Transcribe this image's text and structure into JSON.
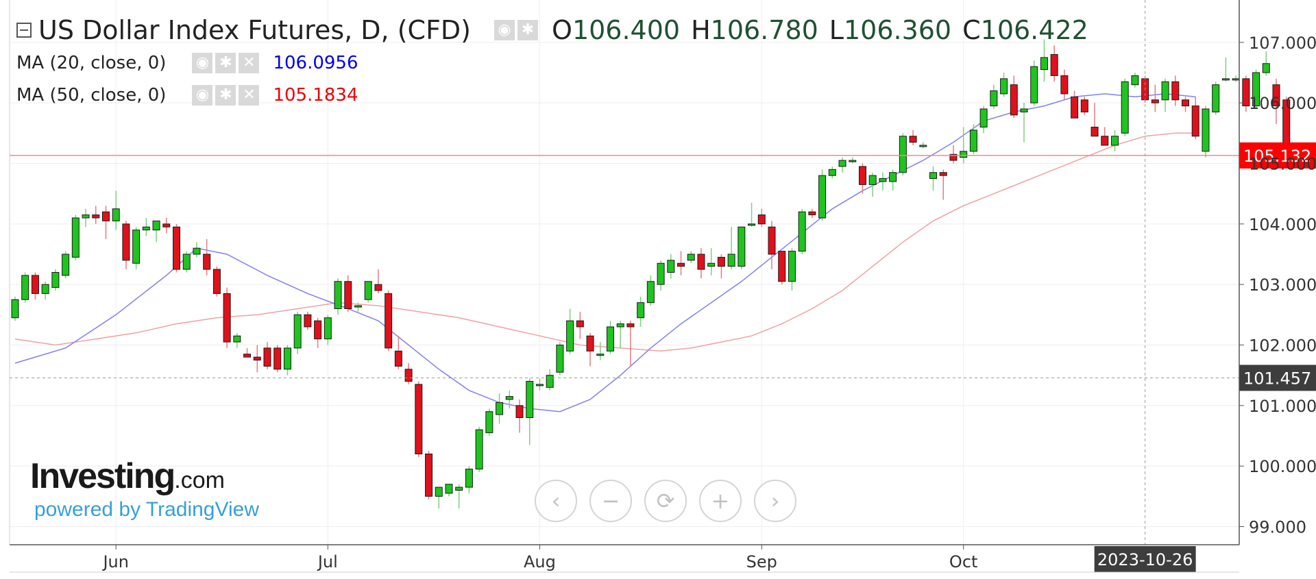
{
  "header": {
    "title": "US Dollar Index Futures, D, (CFD)",
    "ohlc": {
      "o_label": "O",
      "o": "106.400",
      "h_label": "H",
      "h": "106.780",
      "l_label": "L",
      "l": "106.360",
      "c_label": "C",
      "c": "106.422"
    }
  },
  "indicators": [
    {
      "label": "MA (20, close, 0)",
      "value": "106.0956",
      "color": "#0000ee"
    },
    {
      "label": "MA (50, close, 0)",
      "value": "105.1834",
      "color": "#ee0000"
    }
  ],
  "branding": {
    "logo_main": "Investing",
    "logo_suffix": ".com",
    "powered_by": "powered by TradingView"
  },
  "navigation": {
    "scroll_left": "‹",
    "zoom_out": "−",
    "reset": "⟳",
    "zoom_in": "+",
    "scroll_right": "›"
  },
  "colors": {
    "up": "#1fc41f",
    "down": "#e0111a",
    "ma20": "#8080ee",
    "ma50": "#f0a0a0",
    "price_line": "#f08a8a",
    "price_badge": "#ff0000",
    "crosshair_badge": "#3d3d3d"
  },
  "chart_data": {
    "type": "candlestick",
    "title": "US Dollar Index Futures, D, (CFD)",
    "ylim": [
      98.7,
      107.7
    ],
    "yticks": [
      "99.000",
      "100.000",
      "101.000",
      "102.000",
      "103.000",
      "104.000",
      "105.000",
      "106.000",
      "107.000"
    ],
    "xticks": [
      {
        "label": "Jun",
        "index": 10
      },
      {
        "label": "Jul",
        "index": 31
      },
      {
        "label": "Aug",
        "index": 52
      },
      {
        "label": "Sep",
        "index": 74
      },
      {
        "label": "Oct",
        "index": 94
      }
    ],
    "current_price_label": "105.132",
    "current_price": 105.132,
    "crosshair_price_label": "101.457",
    "crosshair_price": 101.457,
    "crosshair_date_label": "2023-10-26",
    "crosshair_index": 112,
    "candles": [
      {
        "o": 102.45,
        "h": 102.8,
        "l": 102.4,
        "c": 102.75
      },
      {
        "o": 102.75,
        "h": 103.2,
        "l": 102.7,
        "c": 103.15
      },
      {
        "o": 103.15,
        "h": 103.2,
        "l": 102.75,
        "c": 102.85
      },
      {
        "o": 102.85,
        "h": 103.05,
        "l": 102.75,
        "c": 103.0
      },
      {
        "o": 102.95,
        "h": 103.25,
        "l": 102.9,
        "c": 103.2
      },
      {
        "o": 103.15,
        "h": 103.55,
        "l": 103.1,
        "c": 103.5
      },
      {
        "o": 103.45,
        "h": 104.15,
        "l": 103.4,
        "c": 104.1
      },
      {
        "o": 104.1,
        "h": 104.25,
        "l": 103.95,
        "c": 104.15
      },
      {
        "o": 104.15,
        "h": 104.3,
        "l": 104.0,
        "c": 104.1
      },
      {
        "o": 104.2,
        "h": 104.3,
        "l": 103.75,
        "c": 104.05
      },
      {
        "o": 104.05,
        "h": 104.55,
        "l": 103.9,
        "c": 104.25
      },
      {
        "o": 104.0,
        "h": 104.05,
        "l": 103.25,
        "c": 103.4
      },
      {
        "o": 103.35,
        "h": 103.95,
        "l": 103.25,
        "c": 103.9
      },
      {
        "o": 103.9,
        "h": 104.1,
        "l": 103.8,
        "c": 103.95
      },
      {
        "o": 103.9,
        "h": 104.05,
        "l": 103.7,
        "c": 104.05
      },
      {
        "o": 104.0,
        "h": 104.1,
        "l": 103.85,
        "c": 103.95
      },
      {
        "o": 103.95,
        "h": 104.0,
        "l": 103.2,
        "c": 103.25
      },
      {
        "o": 103.25,
        "h": 103.55,
        "l": 103.2,
        "c": 103.5
      },
      {
        "o": 103.5,
        "h": 103.7,
        "l": 103.45,
        "c": 103.6
      },
      {
        "o": 103.5,
        "h": 103.75,
        "l": 103.15,
        "c": 103.25
      },
      {
        "o": 103.25,
        "h": 103.3,
        "l": 102.8,
        "c": 102.85
      },
      {
        "o": 102.85,
        "h": 102.95,
        "l": 101.95,
        "c": 102.05
      },
      {
        "o": 102.05,
        "h": 102.2,
        "l": 101.95,
        "c": 102.15
      },
      {
        "o": 101.85,
        "h": 101.95,
        "l": 101.8,
        "c": 101.8
      },
      {
        "o": 101.8,
        "h": 102.0,
        "l": 101.55,
        "c": 101.75
      },
      {
        "o": 101.95,
        "h": 102.05,
        "l": 101.6,
        "c": 101.65
      },
      {
        "o": 101.95,
        "h": 102.0,
        "l": 101.55,
        "c": 101.6
      },
      {
        "o": 101.6,
        "h": 102.0,
        "l": 101.5,
        "c": 101.95
      },
      {
        "o": 101.95,
        "h": 102.55,
        "l": 101.85,
        "c": 102.5
      },
      {
        "o": 102.5,
        "h": 102.55,
        "l": 102.25,
        "c": 102.3
      },
      {
        "o": 102.4,
        "h": 102.45,
        "l": 101.95,
        "c": 102.1
      },
      {
        "o": 102.1,
        "h": 102.5,
        "l": 102.0,
        "c": 102.45
      },
      {
        "o": 102.6,
        "h": 103.1,
        "l": 102.5,
        "c": 103.05
      },
      {
        "o": 103.05,
        "h": 103.15,
        "l": 102.55,
        "c": 102.6
      },
      {
        "o": 102.65,
        "h": 102.7,
        "l": 102.55,
        "c": 102.65
      },
      {
        "o": 102.75,
        "h": 103.05,
        "l": 102.7,
        "c": 103.05
      },
      {
        "o": 103.0,
        "h": 103.25,
        "l": 102.85,
        "c": 102.9
      },
      {
        "o": 102.85,
        "h": 102.9,
        "l": 101.9,
        "c": 101.95
      },
      {
        "o": 101.9,
        "h": 102.15,
        "l": 101.6,
        "c": 101.65
      },
      {
        "o": 101.6,
        "h": 101.7,
        "l": 101.35,
        "c": 101.4
      },
      {
        "o": 101.35,
        "h": 101.4,
        "l": 100.15,
        "c": 100.2
      },
      {
        "o": 100.2,
        "h": 100.25,
        "l": 99.45,
        "c": 99.5
      },
      {
        "o": 99.5,
        "h": 99.65,
        "l": 99.3,
        "c": 99.65
      },
      {
        "o": 99.55,
        "h": 99.7,
        "l": 99.5,
        "c": 99.7
      },
      {
        "o": 99.6,
        "h": 99.7,
        "l": 99.3,
        "c": 99.65
      },
      {
        "o": 99.65,
        "h": 100.0,
        "l": 99.55,
        "c": 99.95
      },
      {
        "o": 99.95,
        "h": 100.65,
        "l": 99.9,
        "c": 100.6
      },
      {
        "o": 100.55,
        "h": 100.95,
        "l": 100.5,
        "c": 100.9
      },
      {
        "o": 100.85,
        "h": 101.2,
        "l": 100.7,
        "c": 101.05
      },
      {
        "o": 101.1,
        "h": 101.25,
        "l": 100.95,
        "c": 101.15
      },
      {
        "o": 101.0,
        "h": 101.1,
        "l": 100.55,
        "c": 100.8
      },
      {
        "o": 100.8,
        "h": 101.45,
        "l": 100.35,
        "c": 101.4
      },
      {
        "o": 101.35,
        "h": 101.45,
        "l": 101.25,
        "c": 101.35
      },
      {
        "o": 101.3,
        "h": 101.6,
        "l": 101.25,
        "c": 101.5
      },
      {
        "o": 101.55,
        "h": 102.05,
        "l": 101.5,
        "c": 102.0
      },
      {
        "o": 101.9,
        "h": 102.6,
        "l": 101.85,
        "c": 102.4
      },
      {
        "o": 102.4,
        "h": 102.55,
        "l": 102.1,
        "c": 102.3
      },
      {
        "o": 102.15,
        "h": 102.2,
        "l": 101.65,
        "c": 101.9
      },
      {
        "o": 101.85,
        "h": 102.05,
        "l": 101.75,
        "c": 101.85
      },
      {
        "o": 101.9,
        "h": 102.4,
        "l": 101.85,
        "c": 102.3
      },
      {
        "o": 102.3,
        "h": 102.4,
        "l": 101.95,
        "c": 102.35
      },
      {
        "o": 102.35,
        "h": 102.4,
        "l": 101.65,
        "c": 102.3
      },
      {
        "o": 102.45,
        "h": 102.8,
        "l": 102.3,
        "c": 102.7
      },
      {
        "o": 102.7,
        "h": 103.15,
        "l": 102.65,
        "c": 103.05
      },
      {
        "o": 103.0,
        "h": 103.4,
        "l": 102.9,
        "c": 103.35
      },
      {
        "o": 103.2,
        "h": 103.5,
        "l": 103.1,
        "c": 103.4
      },
      {
        "o": 103.35,
        "h": 103.55,
        "l": 103.15,
        "c": 103.3
      },
      {
        "o": 103.4,
        "h": 103.55,
        "l": 103.35,
        "c": 103.5
      },
      {
        "o": 103.5,
        "h": 103.6,
        "l": 103.1,
        "c": 103.25
      },
      {
        "o": 103.3,
        "h": 103.6,
        "l": 103.15,
        "c": 103.35
      },
      {
        "o": 103.45,
        "h": 103.5,
        "l": 103.1,
        "c": 103.3
      },
      {
        "o": 103.3,
        "h": 103.95,
        "l": 103.25,
        "c": 103.5
      },
      {
        "o": 103.3,
        "h": 103.95,
        "l": 103.25,
        "c": 103.95
      },
      {
        "o": 104.0,
        "h": 104.35,
        "l": 103.95,
        "c": 104.0
      },
      {
        "o": 104.15,
        "h": 104.25,
        "l": 103.95,
        "c": 104.0
      },
      {
        "o": 103.95,
        "h": 104.05,
        "l": 103.25,
        "c": 103.5
      },
      {
        "o": 103.55,
        "h": 103.55,
        "l": 103.0,
        "c": 103.05
      },
      {
        "o": 103.05,
        "h": 103.6,
        "l": 102.9,
        "c": 103.55
      },
      {
        "o": 103.55,
        "h": 104.25,
        "l": 103.5,
        "c": 104.2
      },
      {
        "o": 104.2,
        "h": 104.25,
        "l": 104.1,
        "c": 104.15
      },
      {
        "o": 104.1,
        "h": 104.9,
        "l": 104.05,
        "c": 104.8
      },
      {
        "o": 104.8,
        "h": 104.95,
        "l": 104.75,
        "c": 104.9
      },
      {
        "o": 104.95,
        "h": 105.1,
        "l": 104.85,
        "c": 105.05
      },
      {
        "o": 105.05,
        "h": 105.1,
        "l": 105.0,
        "c": 105.05
      },
      {
        "o": 104.95,
        "h": 105.0,
        "l": 104.5,
        "c": 104.65
      },
      {
        "o": 104.65,
        "h": 104.85,
        "l": 104.45,
        "c": 104.8
      },
      {
        "o": 104.7,
        "h": 104.85,
        "l": 104.55,
        "c": 104.75
      },
      {
        "o": 104.7,
        "h": 104.9,
        "l": 104.55,
        "c": 104.85
      },
      {
        "o": 104.85,
        "h": 105.5,
        "l": 104.8,
        "c": 105.45
      },
      {
        "o": 105.45,
        "h": 105.55,
        "l": 105.3,
        "c": 105.35
      },
      {
        "o": 105.3,
        "h": 105.35,
        "l": 105.25,
        "c": 105.3
      },
      {
        "o": 104.75,
        "h": 104.95,
        "l": 104.55,
        "c": 104.85
      },
      {
        "o": 104.85,
        "h": 104.9,
        "l": 104.4,
        "c": 104.8
      },
      {
        "o": 105.15,
        "h": 105.3,
        "l": 105.0,
        "c": 105.05
      },
      {
        "o": 105.1,
        "h": 105.6,
        "l": 105.0,
        "c": 105.2
      },
      {
        "o": 105.2,
        "h": 105.65,
        "l": 105.15,
        "c": 105.55
      },
      {
        "o": 105.6,
        "h": 105.95,
        "l": 105.5,
        "c": 105.9
      },
      {
        "o": 105.95,
        "h": 106.3,
        "l": 105.9,
        "c": 106.2
      },
      {
        "o": 106.15,
        "h": 106.5,
        "l": 106.1,
        "c": 106.4
      },
      {
        "o": 106.3,
        "h": 106.45,
        "l": 105.75,
        "c": 105.8
      },
      {
        "o": 105.85,
        "h": 106.0,
        "l": 105.35,
        "c": 105.9
      },
      {
        "o": 106.0,
        "h": 106.7,
        "l": 105.95,
        "c": 106.6
      },
      {
        "o": 106.55,
        "h": 107.05,
        "l": 106.35,
        "c": 106.75
      },
      {
        "o": 106.8,
        "h": 106.95,
        "l": 106.35,
        "c": 106.45
      },
      {
        "o": 106.45,
        "h": 106.55,
        "l": 106.05,
        "c": 106.15
      },
      {
        "o": 106.1,
        "h": 106.2,
        "l": 105.75,
        "c": 105.75
      },
      {
        "o": 106.05,
        "h": 106.1,
        "l": 105.8,
        "c": 105.85
      },
      {
        "o": 105.6,
        "h": 106.0,
        "l": 105.45,
        "c": 105.45
      },
      {
        "o": 105.45,
        "h": 105.6,
        "l": 105.3,
        "c": 105.3
      },
      {
        "o": 105.3,
        "h": 105.55,
        "l": 105.2,
        "c": 105.45
      },
      {
        "o": 105.5,
        "h": 106.4,
        "l": 105.45,
        "c": 106.35
      },
      {
        "o": 106.3,
        "h": 106.5,
        "l": 106.25,
        "c": 106.45
      },
      {
        "o": 106.4,
        "h": 106.45,
        "l": 106.0,
        "c": 106.05
      },
      {
        "o": 106.05,
        "h": 106.3,
        "l": 105.85,
        "c": 106.0
      },
      {
        "o": 106.05,
        "h": 106.4,
        "l": 105.85,
        "c": 106.35
      },
      {
        "o": 106.35,
        "h": 106.45,
        "l": 105.95,
        "c": 106.05
      },
      {
        "o": 106.05,
        "h": 106.1,
        "l": 105.85,
        "c": 105.95
      },
      {
        "o": 105.95,
        "h": 106.1,
        "l": 105.4,
        "c": 105.45
      },
      {
        "o": 105.2,
        "h": 105.95,
        "l": 105.1,
        "c": 105.9
      },
      {
        "o": 105.85,
        "h": 106.35,
        "l": 105.8,
        "c": 106.3
      },
      {
        "o": 106.4,
        "h": 106.75,
        "l": 106.35,
        "c": 106.4
      },
      {
        "o": 106.4,
        "h": 106.45,
        "l": 106.35,
        "c": 106.4
      },
      {
        "o": 106.4,
        "h": 106.45,
        "l": 105.85,
        "c": 105.95
      },
      {
        "o": 105.95,
        "h": 106.55,
        "l": 105.9,
        "c": 106.5
      },
      {
        "o": 106.5,
        "h": 106.85,
        "l": 106.45,
        "c": 106.65
      },
      {
        "o": 106.3,
        "h": 106.4,
        "l": 105.65,
        "c": 105.95
      },
      {
        "o": 106.05,
        "h": 106.1,
        "l": 105.05,
        "c": 105.13
      }
    ],
    "ma20": [
      [
        0,
        101.7
      ],
      [
        5,
        101.95
      ],
      [
        10,
        102.5
      ],
      [
        15,
        103.15
      ],
      [
        18,
        103.6
      ],
      [
        21,
        103.5
      ],
      [
        25,
        103.15
      ],
      [
        29,
        102.85
      ],
      [
        33,
        102.6
      ],
      [
        36,
        102.4
      ],
      [
        39,
        102.0
      ],
      [
        42,
        101.6
      ],
      [
        45,
        101.25
      ],
      [
        48,
        101.05
      ],
      [
        51,
        100.95
      ],
      [
        54,
        100.9
      ],
      [
        57,
        101.1
      ],
      [
        60,
        101.5
      ],
      [
        63,
        101.95
      ],
      [
        66,
        102.35
      ],
      [
        69,
        102.7
      ],
      [
        72,
        103.05
      ],
      [
        75,
        103.45
      ],
      [
        78,
        103.85
      ],
      [
        81,
        104.25
      ],
      [
        84,
        104.55
      ],
      [
        87,
        104.8
      ],
      [
        90,
        105.05
      ],
      [
        93,
        105.35
      ],
      [
        96,
        105.7
      ],
      [
        99,
        105.85
      ],
      [
        102,
        105.95
      ],
      [
        105,
        106.1
      ],
      [
        108,
        106.15
      ],
      [
        111,
        106.1
      ],
      [
        114,
        106.15
      ],
      [
        117,
        106.1
      ]
    ],
    "ma50": [
      [
        0,
        102.1
      ],
      [
        4,
        102.0
      ],
      [
        8,
        102.1
      ],
      [
        12,
        102.2
      ],
      [
        16,
        102.35
      ],
      [
        20,
        102.45
      ],
      [
        24,
        102.5
      ],
      [
        28,
        102.6
      ],
      [
        32,
        102.7
      ],
      [
        36,
        102.65
      ],
      [
        40,
        102.55
      ],
      [
        44,
        102.45
      ],
      [
        48,
        102.3
      ],
      [
        52,
        102.15
      ],
      [
        56,
        102.0
      ],
      [
        60,
        101.95
      ],
      [
        64,
        101.9
      ],
      [
        67,
        101.95
      ],
      [
        70,
        102.05
      ],
      [
        73,
        102.15
      ],
      [
        76,
        102.35
      ],
      [
        79,
        102.6
      ],
      [
        82,
        102.9
      ],
      [
        85,
        103.3
      ],
      [
        88,
        103.7
      ],
      [
        91,
        104.05
      ],
      [
        94,
        104.3
      ],
      [
        97,
        104.5
      ],
      [
        100,
        104.7
      ],
      [
        103,
        104.9
      ],
      [
        106,
        105.1
      ],
      [
        109,
        105.3
      ],
      [
        112,
        105.45
      ],
      [
        115,
        105.5
      ],
      [
        117,
        105.5
      ]
    ]
  }
}
